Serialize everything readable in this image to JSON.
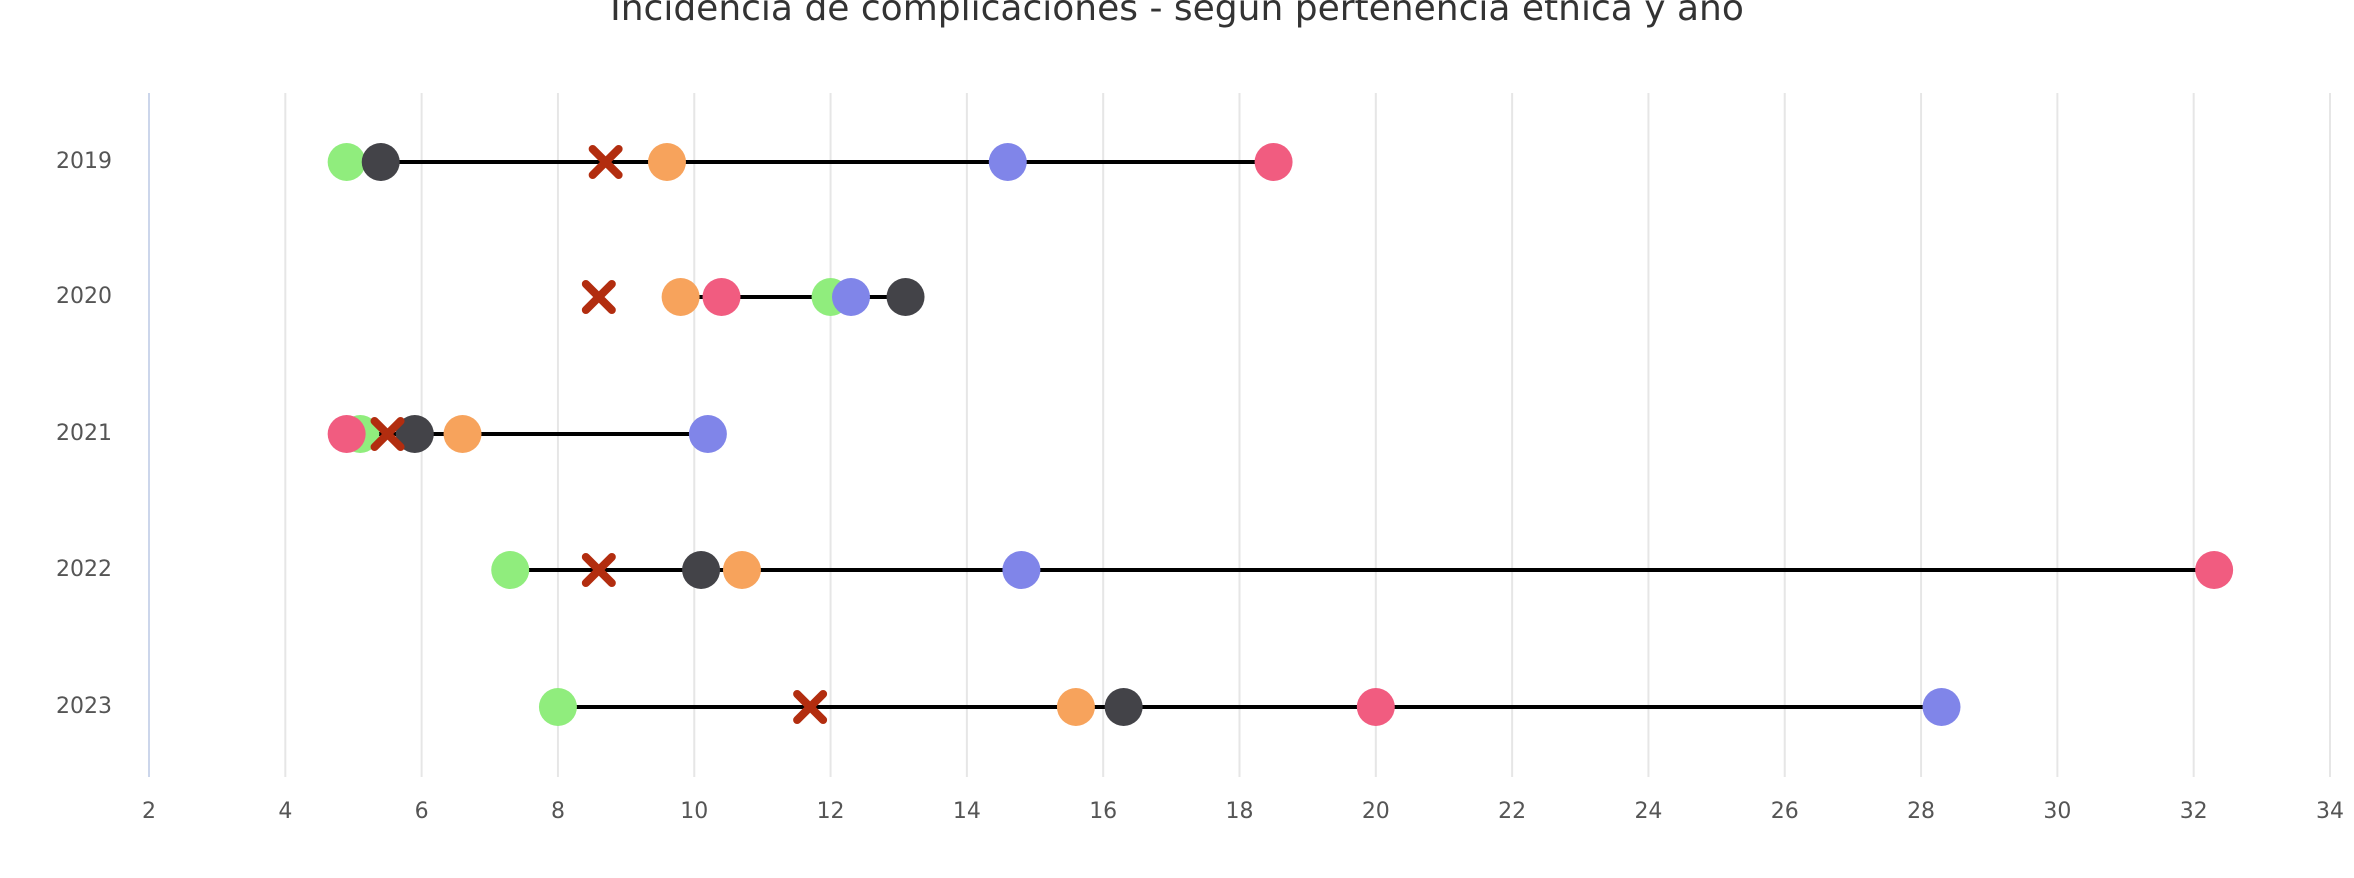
{
  "chart_data": {
    "type": "dot",
    "title": "Incidencia de complicaciones - según pertenencia étnica y año",
    "categories": [
      "2019",
      "2020",
      "2021",
      "2022",
      "2023"
    ],
    "series": [
      {
        "color": "#90ed7d",
        "marker": "circle",
        "values": [
          4.9,
          12.0,
          5.1,
          7.3,
          8.0
        ]
      },
      {
        "color": "#434348",
        "marker": "circle",
        "values": [
          5.4,
          13.1,
          5.9,
          10.1,
          16.3
        ]
      },
      {
        "color": "#f7a35c",
        "marker": "circle",
        "values": [
          9.6,
          9.8,
          6.6,
          10.7,
          15.6
        ]
      },
      {
        "color": "#8085e9",
        "marker": "circle",
        "values": [
          14.6,
          12.3,
          10.2,
          14.8,
          28.3
        ]
      },
      {
        "color": "#f15c80",
        "marker": "circle",
        "values": [
          18.5,
          10.4,
          4.9,
          32.3,
          20.0
        ]
      },
      {
        "color": "#b22d0f",
        "marker": "x",
        "values": [
          8.7,
          8.6,
          5.5,
          8.6,
          11.7
        ]
      }
    ],
    "xlim": [
      2,
      34
    ],
    "xticks": [
      2,
      4,
      6,
      8,
      10,
      12,
      14,
      16,
      18,
      20,
      22,
      24,
      26,
      28,
      30,
      32,
      34
    ],
    "grid": true
  }
}
